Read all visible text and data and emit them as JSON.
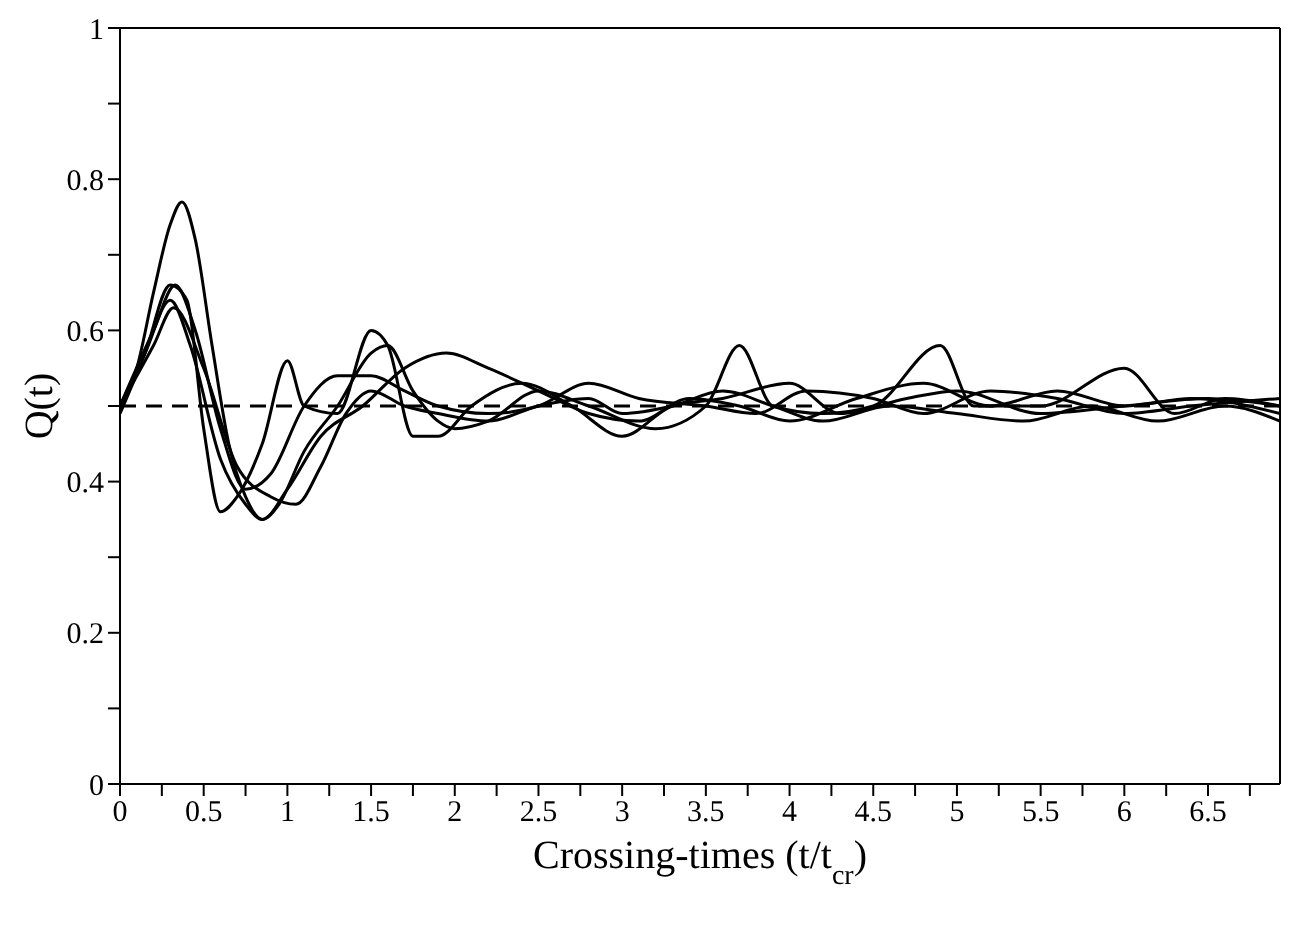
{
  "chart_data": {
    "type": "line",
    "xlabel": "Crossing-times (t/t$_{cr}$)",
    "ylabel": "Q(t)",
    "xlim": [
      0,
      6.93
    ],
    "ylim": [
      0,
      1
    ],
    "xticks": [
      0,
      {
        "value": 0.25,
        "label": null
      },
      0.5,
      {
        "value": 0.75,
        "label": null
      },
      1,
      {
        "value": 1.25,
        "label": null
      },
      1.5,
      {
        "value": 1.75,
        "label": null
      },
      2,
      {
        "value": 2.25,
        "label": null
      },
      2.5,
      {
        "value": 2.75,
        "label": null
      },
      3,
      {
        "value": 3.25,
        "label": null
      },
      3.5,
      {
        "value": 3.75,
        "label": null
      },
      4,
      {
        "value": 4.25,
        "label": null
      },
      4.5,
      {
        "value": 4.75,
        "label": null
      },
      5,
      {
        "value": 5.25,
        "label": null
      },
      5.5,
      {
        "value": 5.75,
        "label": null
      },
      6,
      {
        "value": 6.25,
        "label": null
      },
      6.5,
      {
        "value": 6.75,
        "label": null
      }
    ],
    "yticks": [
      0,
      {
        "value": 0.1,
        "label": null
      },
      0.2,
      {
        "value": 0.3,
        "label": null
      },
      0.4,
      {
        "value": 0.5,
        "label": null
      },
      0.6,
      {
        "value": 0.7,
        "label": null
      },
      0.8,
      {
        "value": 0.9,
        "label": null
      },
      1
    ],
    "grid": false,
    "legend": false,
    "marker": "none",
    "line_style": "solid",
    "ref_lines": [
      {
        "axis": "y",
        "value": 0.5,
        "label": null,
        "color": "#000000",
        "line_style": "dashed"
      }
    ],
    "series": [
      {
        "color": "#000000",
        "x": [
          0,
          0.1,
          0.2,
          0.3,
          0.37,
          0.45,
          0.55,
          0.65,
          0.75,
          0.85,
          0.95,
          1.1,
          1.3,
          1.5,
          1.6,
          1.75,
          1.9,
          2.0,
          2.2,
          2.5,
          2.8,
          3.2,
          3.5,
          3.7,
          3.9,
          4.2,
          4.5,
          4.9,
          5.1,
          5.5,
          6.0,
          6.3,
          6.6,
          6.93
        ],
        "values": [
          0.5,
          0.55,
          0.65,
          0.74,
          0.77,
          0.72,
          0.58,
          0.45,
          0.38,
          0.35,
          0.37,
          0.44,
          0.5,
          0.57,
          0.58,
          0.52,
          0.48,
          0.47,
          0.48,
          0.52,
          0.5,
          0.47,
          0.5,
          0.58,
          0.5,
          0.49,
          0.5,
          0.58,
          0.5,
          0.5,
          0.55,
          0.49,
          0.51,
          0.5
        ]
      },
      {
        "color": "#000000",
        "x": [
          0,
          0.15,
          0.3,
          0.4,
          0.5,
          0.6,
          0.7,
          0.85,
          1.0,
          1.1,
          1.3,
          1.5,
          1.6,
          1.75,
          1.9,
          2.1,
          2.4,
          2.7,
          3.0,
          3.3,
          3.6,
          4.0,
          4.3,
          4.7,
          5.0,
          5.5,
          6.0,
          6.5,
          6.93
        ],
        "values": [
          0.49,
          0.57,
          0.66,
          0.64,
          0.47,
          0.36,
          0.38,
          0.45,
          0.56,
          0.5,
          0.49,
          0.6,
          0.58,
          0.46,
          0.46,
          0.5,
          0.53,
          0.5,
          0.46,
          0.5,
          0.51,
          0.53,
          0.49,
          0.51,
          0.52,
          0.49,
          0.5,
          0.51,
          0.5
        ]
      },
      {
        "color": "#000000",
        "x": [
          0,
          0.2,
          0.33,
          0.45,
          0.6,
          0.75,
          0.9,
          1.1,
          1.3,
          1.5,
          1.7,
          1.9,
          2.2,
          2.5,
          2.8,
          3.1,
          3.5,
          3.8,
          4.1,
          4.5,
          4.8,
          5.2,
          5.6,
          6.0,
          6.4,
          6.93
        ],
        "values": [
          0.5,
          0.6,
          0.66,
          0.6,
          0.47,
          0.39,
          0.41,
          0.5,
          0.54,
          0.54,
          0.52,
          0.5,
          0.49,
          0.5,
          0.53,
          0.51,
          0.5,
          0.49,
          0.52,
          0.51,
          0.49,
          0.52,
          0.51,
          0.49,
          0.5,
          0.51
        ]
      },
      {
        "color": "#000000",
        "x": [
          0,
          0.15,
          0.3,
          0.42,
          0.6,
          0.75,
          0.85,
          1.0,
          1.2,
          1.45,
          1.7,
          1.95,
          2.2,
          2.5,
          2.8,
          3.1,
          3.4,
          3.7,
          4.0,
          4.4,
          4.8,
          5.2,
          5.6,
          6.0,
          6.4,
          6.93
        ],
        "values": [
          0.5,
          0.57,
          0.64,
          0.58,
          0.43,
          0.37,
          0.35,
          0.39,
          0.46,
          0.5,
          0.55,
          0.57,
          0.55,
          0.52,
          0.49,
          0.48,
          0.51,
          0.5,
          0.48,
          0.51,
          0.53,
          0.5,
          0.52,
          0.5,
          0.51,
          0.49
        ]
      },
      {
        "color": "#000000",
        "x": [
          0,
          0.2,
          0.32,
          0.5,
          0.7,
          0.9,
          1.05,
          1.2,
          1.35,
          1.5,
          1.7,
          1.9,
          2.2,
          2.5,
          2.8,
          3.0,
          3.3,
          3.6,
          3.9,
          4.2,
          4.6,
          5.0,
          5.4,
          5.8,
          6.2,
          6.6,
          6.93
        ],
        "values": [
          0.5,
          0.58,
          0.63,
          0.55,
          0.42,
          0.38,
          0.37,
          0.42,
          0.49,
          0.52,
          0.5,
          0.49,
          0.48,
          0.5,
          0.51,
          0.49,
          0.5,
          0.52,
          0.5,
          0.48,
          0.5,
          0.49,
          0.48,
          0.5,
          0.48,
          0.5,
          0.48
        ]
      }
    ]
  }
}
